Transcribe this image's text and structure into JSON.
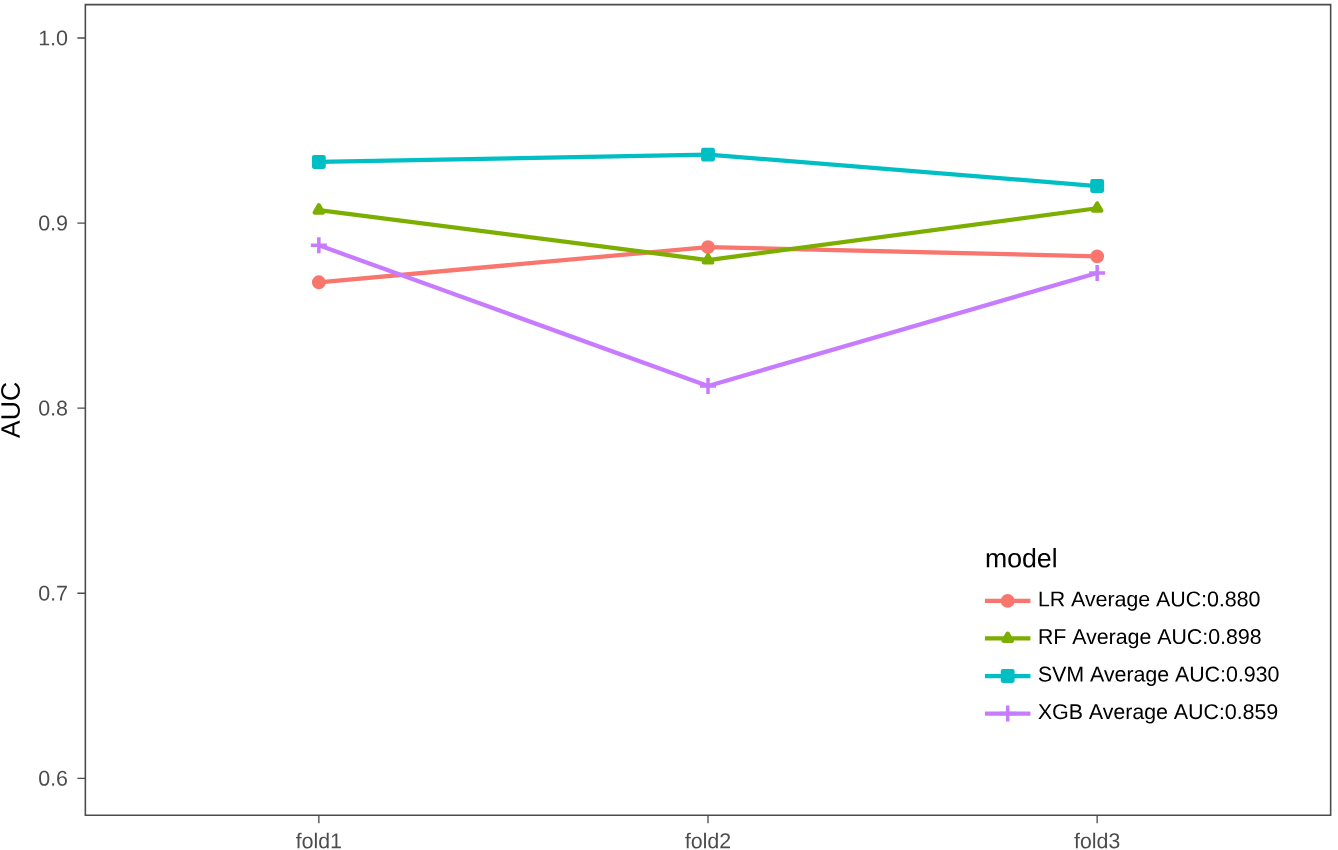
{
  "chart_data": {
    "type": "line",
    "ylabel": "AUC",
    "legend_title": "model",
    "categories": [
      "fold1",
      "fold2",
      "fold3"
    ],
    "series": [
      {
        "name": "LR Average AUC:0.880",
        "color": "#f8766d",
        "marker": "circle",
        "values": [
          0.868,
          0.887,
          0.882
        ]
      },
      {
        "name": "RF Average AUC:0.898",
        "color": "#7cae00",
        "marker": "triangle",
        "values": [
          0.907,
          0.88,
          0.908
        ]
      },
      {
        "name": "SVM Average AUC:0.930",
        "color": "#00bfc4",
        "marker": "square",
        "values": [
          0.933,
          0.937,
          0.92
        ]
      },
      {
        "name": "XGB Average AUC:0.859",
        "color": "#c77cff",
        "marker": "cross",
        "values": [
          0.888,
          0.812,
          0.873
        ]
      }
    ],
    "ylim": [
      0.58,
      1.018
    ],
    "yticks": [
      0.6,
      0.7,
      0.8,
      0.9,
      {
        "value": 1.0,
        "label": "1.0"
      }
    ],
    "grid": false,
    "legend": "bottom right",
    "line_style": "solid"
  }
}
